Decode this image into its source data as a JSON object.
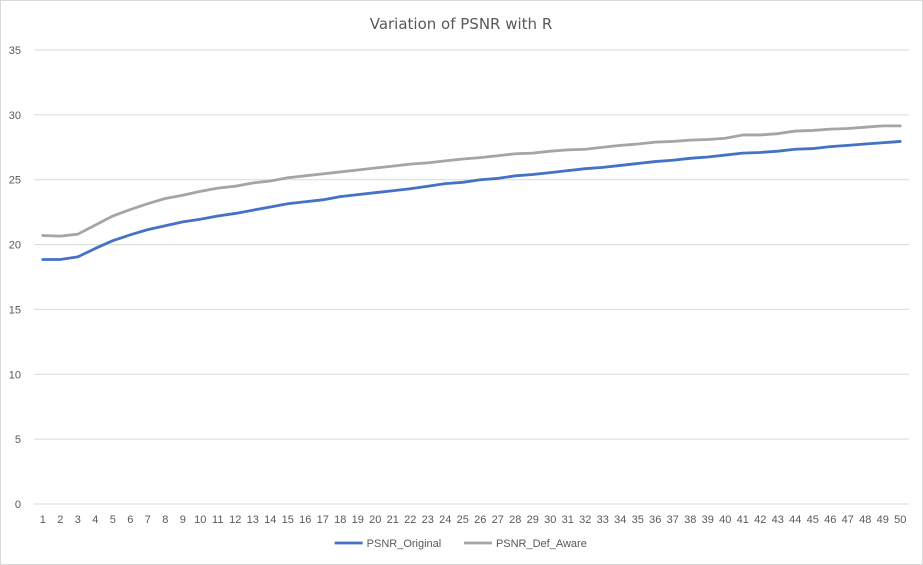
{
  "chart_data": {
    "type": "line",
    "title": "Variation of PSNR with R",
    "xlabel": "",
    "ylabel": "",
    "ylim": [
      0,
      35
    ],
    "yticks": [
      0,
      5,
      10,
      15,
      20,
      25,
      30,
      35
    ],
    "grid": true,
    "legend_position": "bottom",
    "categories": [
      "1",
      "2",
      "3",
      "4",
      "5",
      "6",
      "7",
      "8",
      "9",
      "10",
      "11",
      "12",
      "13",
      "14",
      "15",
      "16",
      "17",
      "18",
      "19",
      "20",
      "21",
      "22",
      "23",
      "24",
      "25",
      "26",
      "27",
      "28",
      "29",
      "30",
      "31",
      "32",
      "33",
      "34",
      "35",
      "36",
      "37",
      "38",
      "39",
      "40",
      "41",
      "42",
      "43",
      "44",
      "45",
      "46",
      "47",
      "48",
      "49",
      "50"
    ],
    "series": [
      {
        "name": "PSNR_Original",
        "color": "#4472c4",
        "values": [
          18.85,
          18.85,
          19.05,
          19.7,
          20.3,
          20.75,
          21.15,
          21.45,
          21.75,
          21.95,
          22.2,
          22.4,
          22.65,
          22.9,
          23.15,
          23.3,
          23.45,
          23.7,
          23.85,
          24.0,
          24.15,
          24.3,
          24.5,
          24.7,
          24.8,
          25.0,
          25.1,
          25.3,
          25.4,
          25.55,
          25.7,
          25.85,
          25.95,
          26.1,
          26.25,
          26.4,
          26.5,
          26.65,
          26.75,
          26.9,
          27.05,
          27.1,
          27.2,
          27.35,
          27.4,
          27.55,
          27.65,
          27.75,
          27.85,
          27.95
        ]
      },
      {
        "name": "PSNR_Def_Aware",
        "color": "#a5a5a5",
        "values": [
          20.7,
          20.65,
          20.8,
          21.5,
          22.2,
          22.7,
          23.15,
          23.55,
          23.8,
          24.1,
          24.35,
          24.5,
          24.75,
          24.9,
          25.15,
          25.3,
          25.45,
          25.6,
          25.75,
          25.9,
          26.05,
          26.2,
          26.3,
          26.45,
          26.6,
          26.7,
          26.85,
          27.0,
          27.05,
          27.2,
          27.3,
          27.35,
          27.5,
          27.65,
          27.75,
          27.9,
          27.95,
          28.05,
          28.1,
          28.2,
          28.45,
          28.45,
          28.55,
          28.75,
          28.8,
          28.9,
          28.95,
          29.05,
          29.15,
          29.15
        ]
      }
    ]
  }
}
